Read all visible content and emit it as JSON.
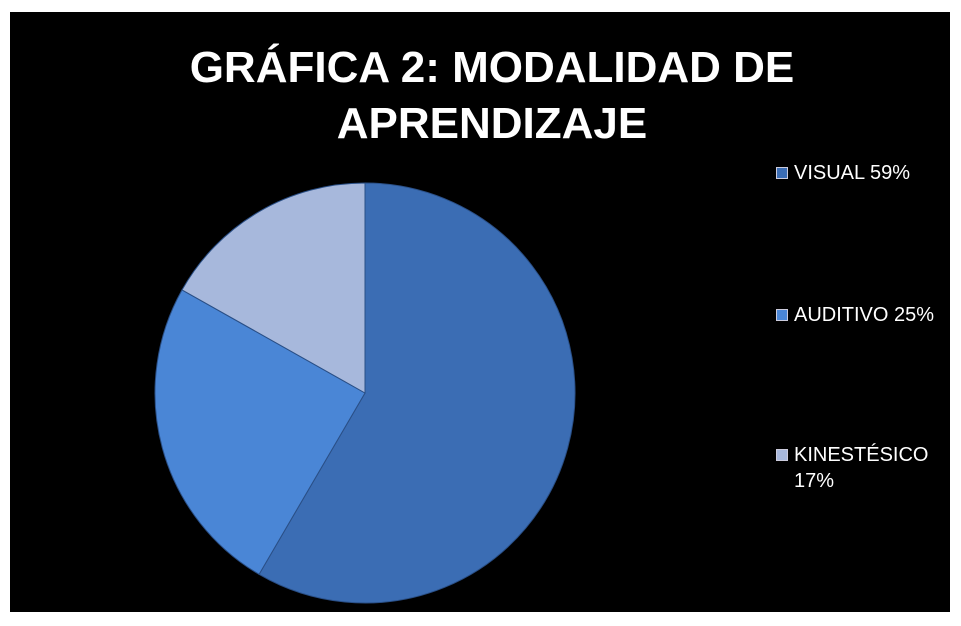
{
  "chart_data": {
    "type": "pie",
    "title": "GRÁFICA 2: MODALIDAD DE APRENDIZAJE",
    "categories": [
      "VISUAL 59%",
      "AUDITIVO 25%",
      "KINESTÉSICO 17%"
    ],
    "values": [
      59,
      25,
      17
    ],
    "colors": [
      "#3b6db4",
      "#4a86d6",
      "#a7b8dc"
    ],
    "legend": "right"
  }
}
